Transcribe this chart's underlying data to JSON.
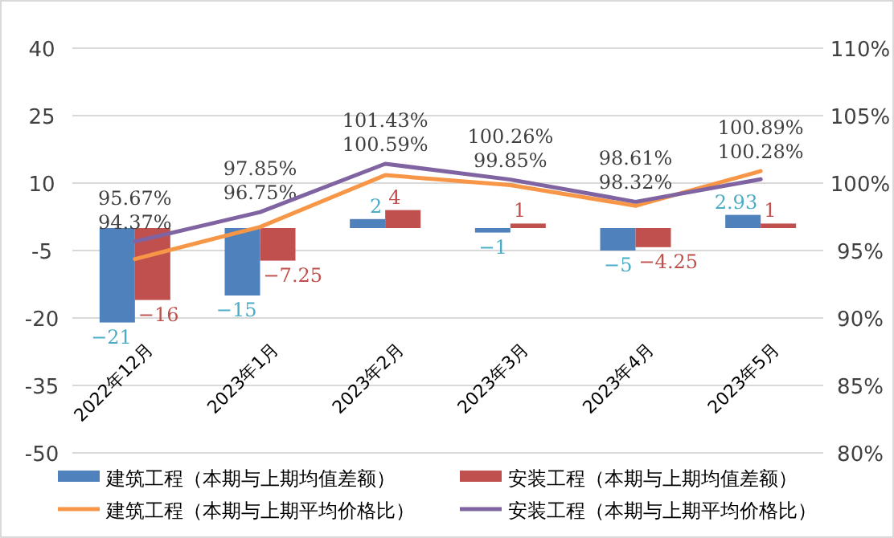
{
  "chart_data": {
    "type": "bar",
    "categories": [
      "2022年12月",
      "2023年1月",
      "2023年2月",
      "2023年3月",
      "2023年4月",
      "2023年5月"
    ],
    "series": [
      {
        "name": "建筑工程（本期与上期均值差额）",
        "color": "#4f81bd",
        "values": [
          -21,
          -15,
          2,
          -1,
          -5,
          2.93
        ],
        "value_labels": [
          "−21",
          "−15",
          "2",
          "−1",
          "−5",
          "2.93"
        ]
      },
      {
        "name": "安装工程（本期与上期均值差额）",
        "color": "#c0504d",
        "values": [
          -16,
          -7.25,
          4,
          1,
          -4.25,
          1
        ],
        "value_labels": [
          "−16",
          "−7.25",
          "4",
          "1",
          "−4.25",
          "1"
        ]
      },
      {
        "name": "建筑工程（本期与上期平均价格比）",
        "type": "line",
        "axis": "y2",
        "color": "#f79646",
        "values": [
          94.37,
          96.75,
          100.59,
          99.85,
          98.32,
          100.89
        ],
        "value_labels": [
          "94.37%",
          "96.75%",
          "100.59%",
          "99.85%",
          "98.32%",
          "100.89%"
        ]
      },
      {
        "name": "安装工程（本期与上期平均价格比）",
        "type": "line",
        "axis": "y2",
        "color": "#8064a2",
        "values": [
          95.67,
          97.85,
          101.43,
          100.26,
          98.61,
          100.28
        ],
        "value_labels": [
          "95.67%",
          "97.85%",
          "101.43%",
          "100.26%",
          "98.61%",
          "100.28%"
        ]
      }
    ],
    "ylim": [
      -50,
      40
    ],
    "yticks": [
      -50,
      -35,
      -20,
      -5,
      10,
      25,
      40
    ],
    "y2lim": [
      80,
      110
    ],
    "y2ticks": [
      {
        "value": 80,
        "label": "80%"
      },
      {
        "value": 85,
        "label": "85%"
      },
      {
        "value": 90,
        "label": "90%"
      },
      {
        "value": 95,
        "label": "95%"
      },
      {
        "value": 100,
        "label": "100%"
      },
      {
        "value": 105,
        "label": "105%"
      },
      {
        "value": 110,
        "label": "110%"
      }
    ],
    "grid": "y",
    "legend": "bottom"
  }
}
